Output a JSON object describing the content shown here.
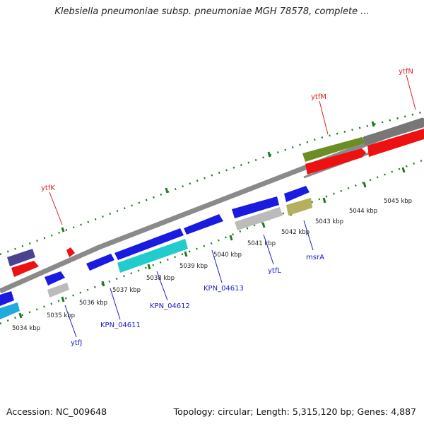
{
  "title": "Klebsiella pneumoniae subsp. pneumoniae MGH 78578, complete ...",
  "footer": {
    "accession": "Accession: NC_009648",
    "topology": "Topology: circular; Length: 5,315,120 bp; Genes: 4,887"
  },
  "colors": {
    "backbone": "#8a8a8a",
    "tick": "#1e7a1e",
    "label_top": "#e02020",
    "label_bottom": "#1a1acc",
    "gene_blue": "#1a1ae0",
    "gene_red": "#ee1111",
    "gene_cyan": "#22cccc",
    "gene_olive": "#6b8e23",
    "gene_khaki": "#b5b060",
    "gene_navy": "#4a4490",
    "gene_gray": "#bbbbbb",
    "gene_darkgray": "#777777",
    "gene_skyblue": "#22aadd"
  },
  "kbp_labels": [
    "5034 kbp",
    "5035 kbp",
    "5036 kbp",
    "5037 kbp",
    "5038 kbp",
    "5039 kbp",
    "5040 kbp",
    "5041 kbp",
    "5042 kbp",
    "5043 kbp",
    "5044 kbp",
    "5045 kbp"
  ],
  "gene_labels_top": [
    "ytfK",
    "ytfM",
    "ytfN"
  ],
  "gene_labels_bottom": [
    "ytfJ",
    "KPN_04611",
    "KPN_04612",
    "KPN_04613",
    "ytfL",
    "msrA"
  ]
}
